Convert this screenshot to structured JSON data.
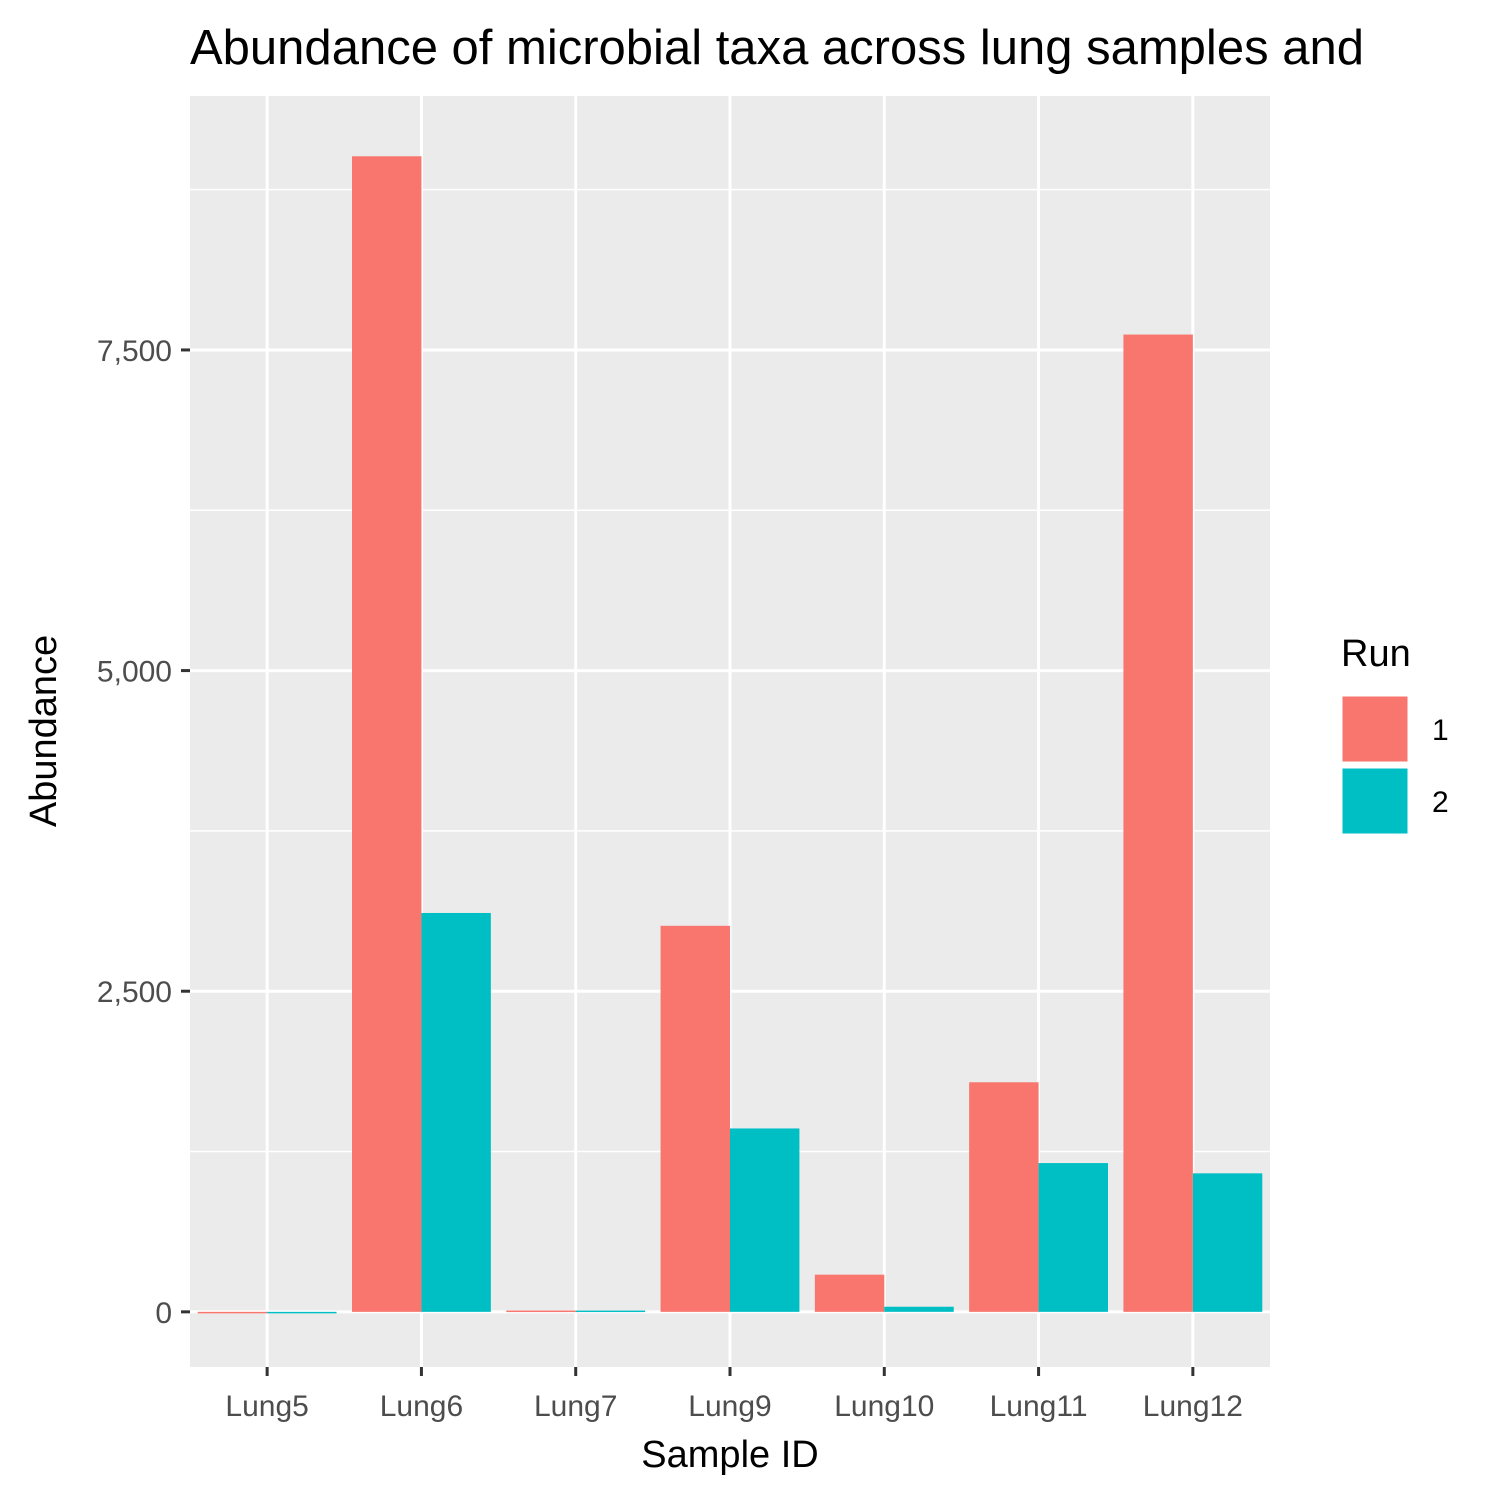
{
  "chart_data": {
    "type": "bar",
    "title": "Abundance of microbial taxa across lung samples and",
    "xlabel": "Sample ID",
    "ylabel": "Abundance",
    "categories": [
      "Lung5",
      "Lung6",
      "Lung7",
      "Lung9",
      "Lung10",
      "Lung11",
      "Lung12"
    ],
    "series": [
      {
        "name": "1",
        "color": "#F8766D",
        "values": [
          0,
          9010,
          10,
          3010,
          290,
          1790,
          7620
        ]
      },
      {
        "name": "2",
        "color": "#00BFC4",
        "values": [
          0,
          3110,
          10,
          1430,
          40,
          1160,
          1080
        ]
      }
    ],
    "ylim": [
      -430,
      9480
    ],
    "yticks": [
      0,
      2500,
      5000,
      7500
    ],
    "ytick_labels": [
      "0",
      "2,500",
      "5,000",
      "7,500"
    ],
    "grid": true,
    "legend": {
      "title": "Run",
      "placement": "right"
    }
  }
}
